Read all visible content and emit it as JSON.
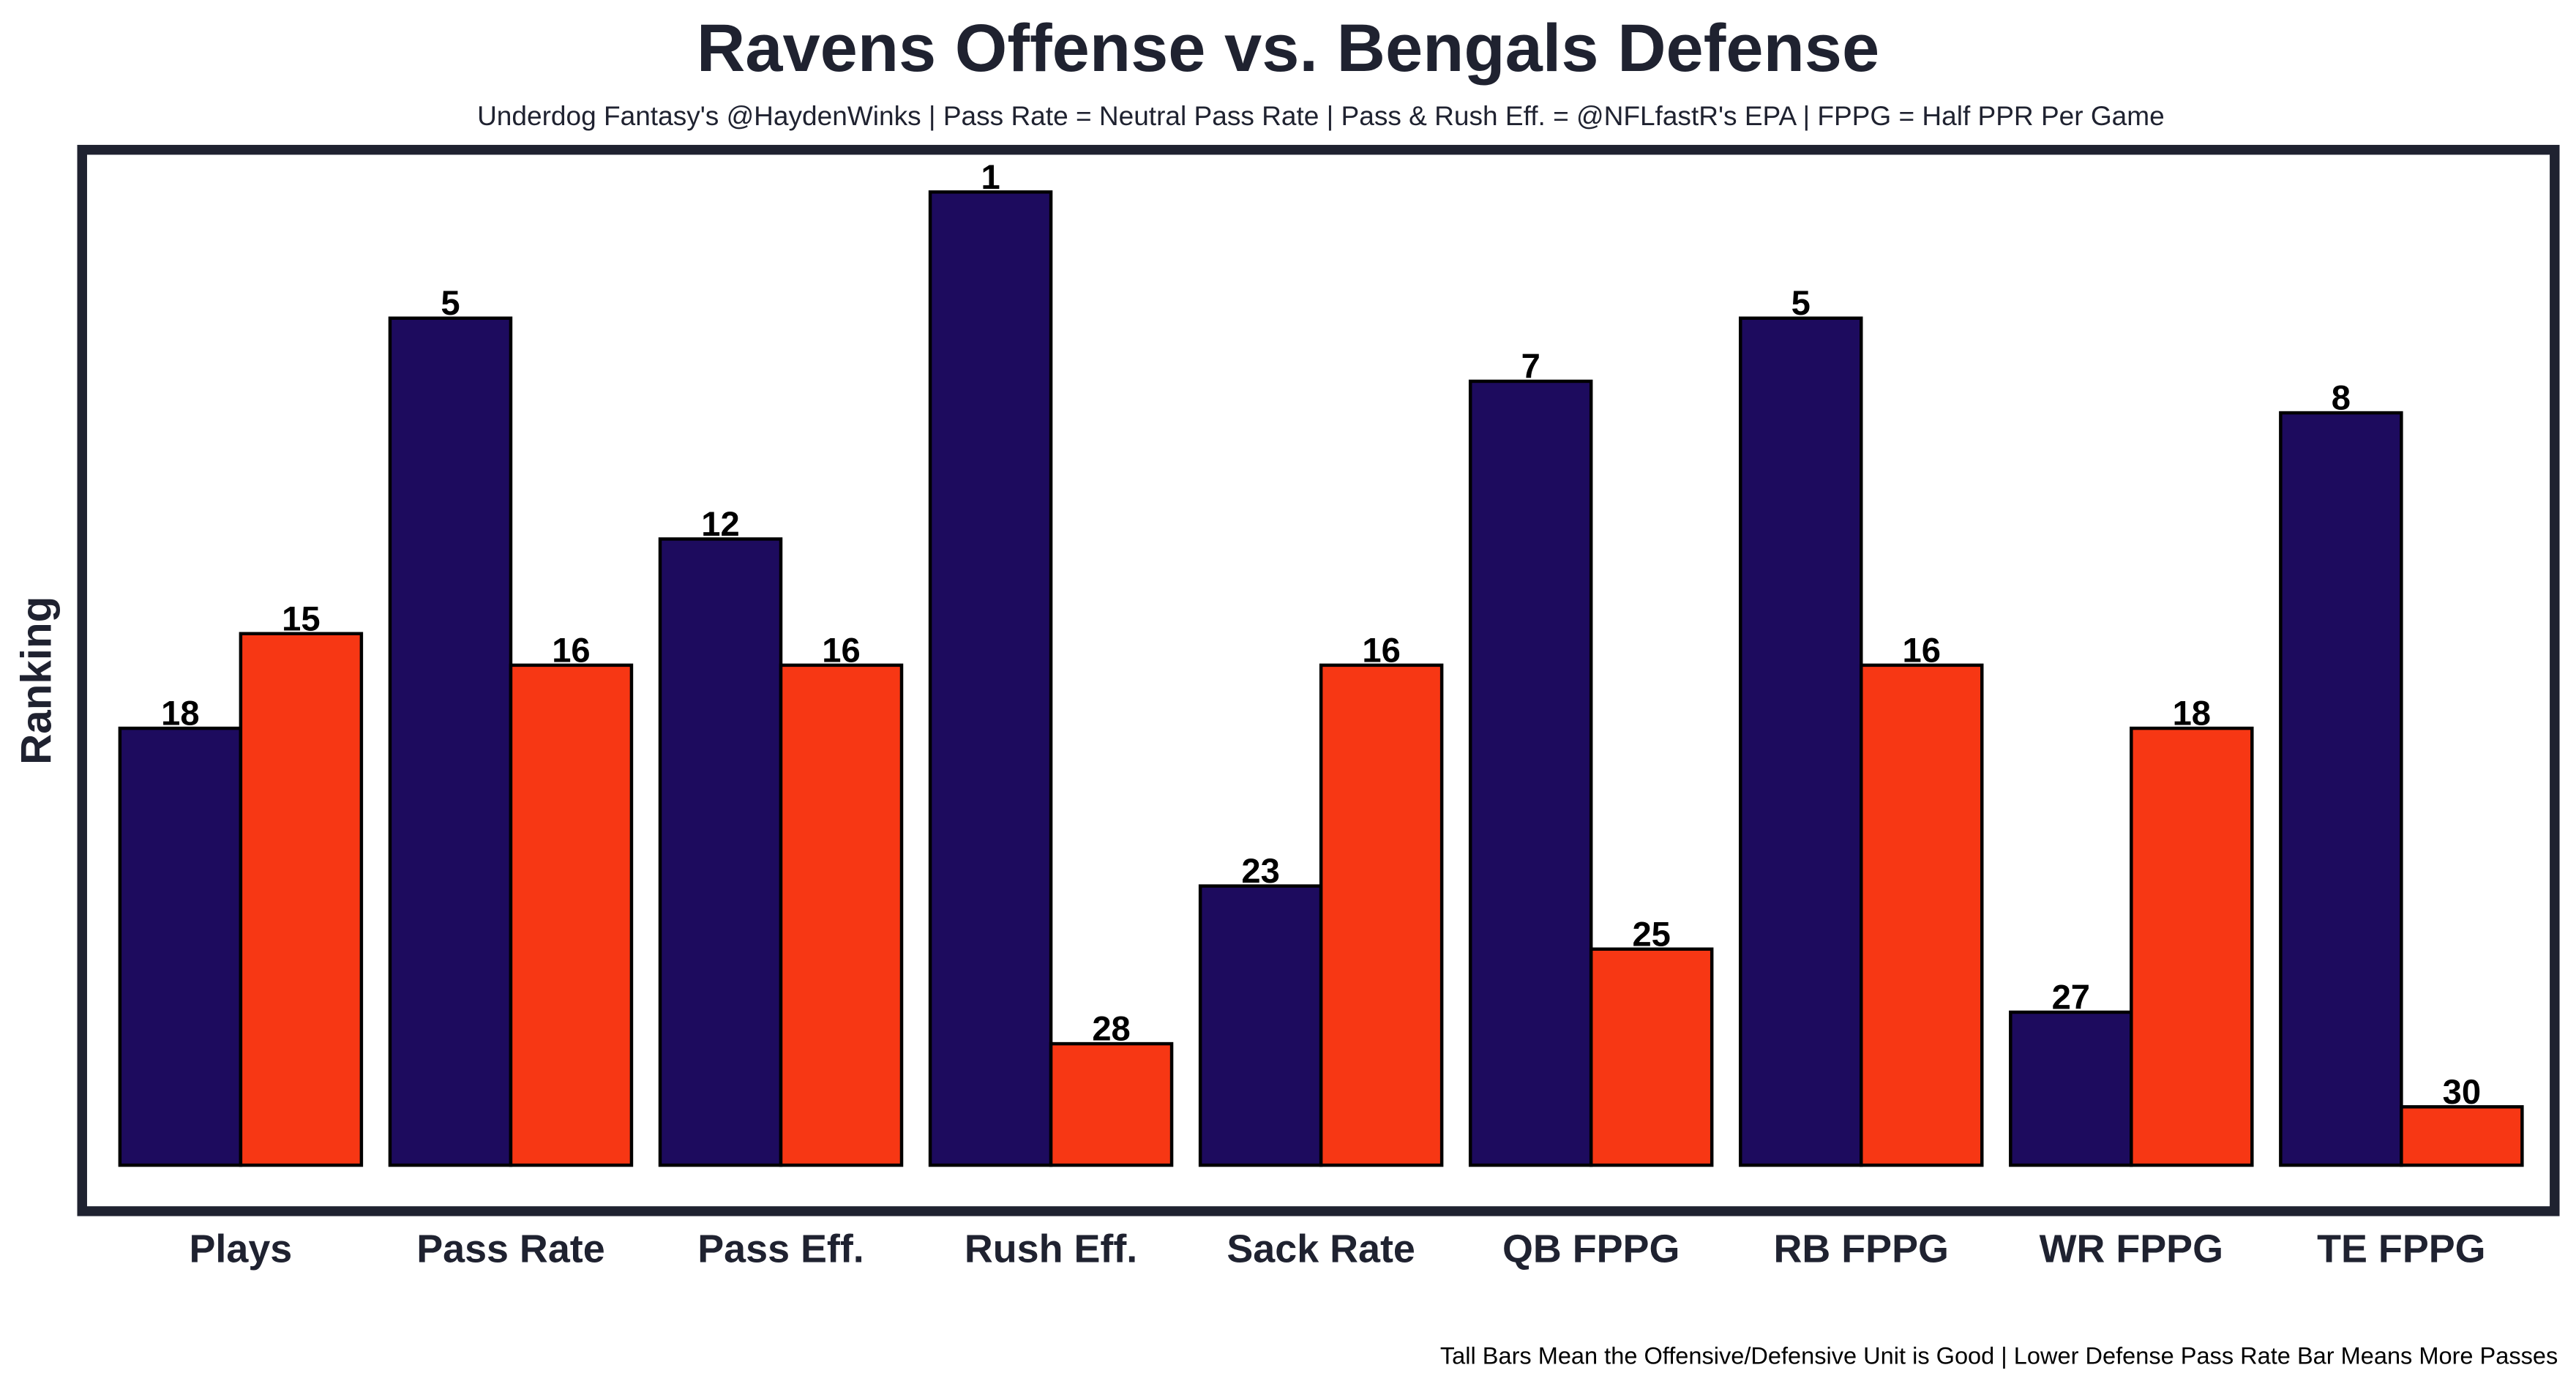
{
  "chart_data": {
    "type": "bar",
    "title": "Ravens Offense vs. Bengals Defense",
    "subtitle": "Underdog Fantasy's @HaydenWinks | Pass Rate = Neutral Pass Rate | Pass & Rush Eff. = @NFLfastR's EPA | FPPG = Half PPR Per Game",
    "xlabel": "",
    "ylabel": "Ranking",
    "footnote": "Tall Bars Mean the Offensive/Defensive Unit is Good | Lower Defense Pass Rate Bar Means More Passes",
    "categories": [
      "Plays",
      "Pass Rate",
      "Pass Eff.",
      "Rush Eff.",
      "Sack Rate",
      "QB FPPG",
      "RB FPPG",
      "WR FPPG",
      "TE FPPG"
    ],
    "series": [
      {
        "name": "Ravens Offense",
        "color": "#1d0b5e",
        "values": [
          18,
          5,
          12,
          1,
          23,
          7,
          5,
          27,
          8
        ]
      },
      {
        "name": "Bengals Defense",
        "color": "#f73714",
        "values": [
          15,
          16,
          16,
          28,
          16,
          25,
          16,
          18,
          30
        ]
      }
    ],
    "y_scale": "inverted rank (lower rank = taller bar)",
    "ylim": [
      32,
      0
    ],
    "grid": false,
    "legend": "none"
  }
}
